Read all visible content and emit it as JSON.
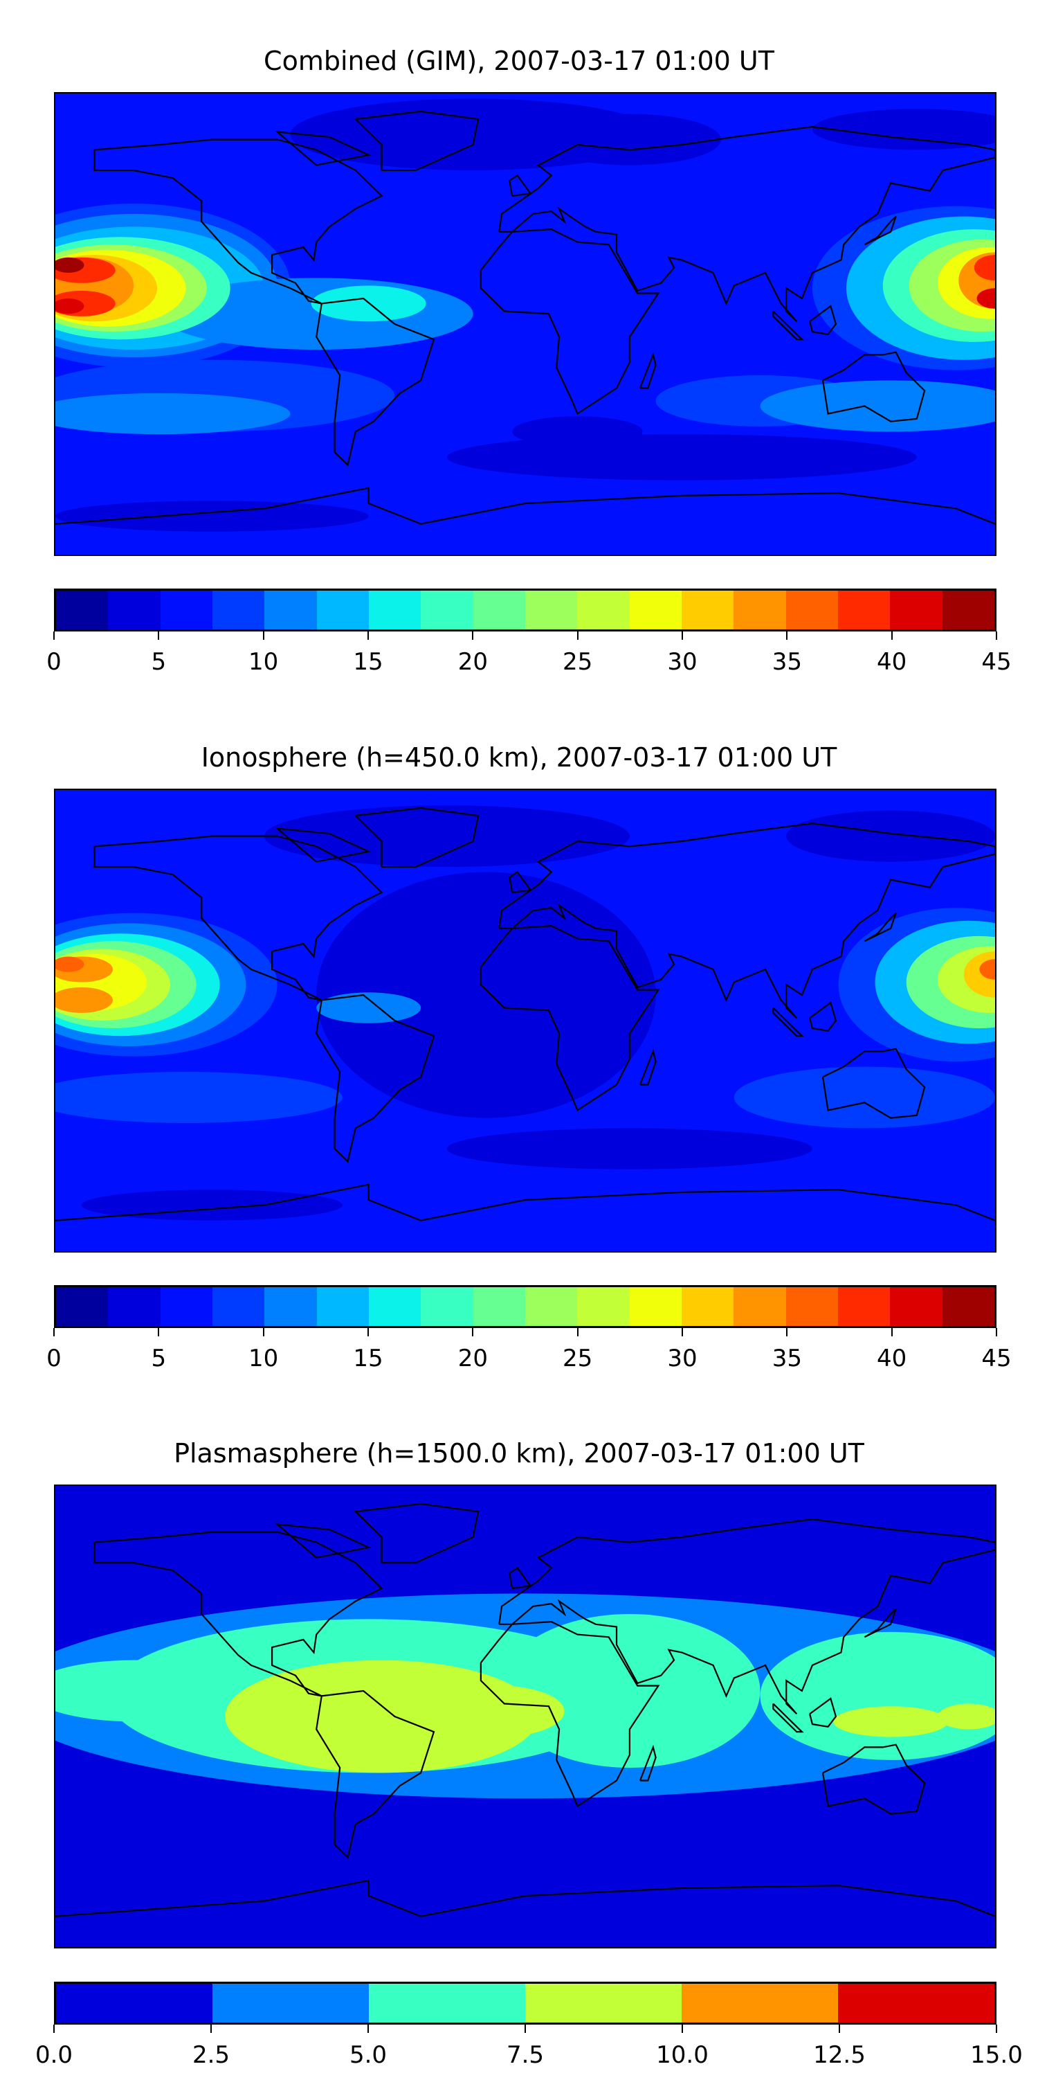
{
  "chart_data": [
    {
      "type": "heatmap",
      "title": "Combined (GIM), 2007-03-17 01:00 UT",
      "projection": "plate carree world map with coastlines",
      "colorbar": {
        "range": [
          0,
          45
        ],
        "step": 2.5,
        "ticks": [
          "0",
          "5",
          "10",
          "15",
          "20",
          "25",
          "30",
          "35",
          "40",
          "45"
        ],
        "colors": [
          "#00009f",
          "#0000dd",
          "#0010ff",
          "#003cff",
          "#0080ff",
          "#00b8ff",
          "#0af2ea",
          "#38ffc2",
          "#66ff92",
          "#9cff5c",
          "#c2ff36",
          "#f2ff0a",
          "#ffcc00",
          "#ff9400",
          "#ff6000",
          "#ff2a00",
          "#dd0000",
          "#9f0000"
        ]
      }
    },
    {
      "type": "heatmap",
      "title": "Ionosphere  (h=450.0 km), 2007-03-17 01:00 UT",
      "projection": "plate carree world map with coastlines",
      "colorbar": {
        "range": [
          0,
          45
        ],
        "step": 2.5,
        "ticks": [
          "0",
          "5",
          "10",
          "15",
          "20",
          "25",
          "30",
          "35",
          "40",
          "45"
        ],
        "colors": [
          "#00009f",
          "#0000dd",
          "#0010ff",
          "#003cff",
          "#0080ff",
          "#00b8ff",
          "#0af2ea",
          "#38ffc2",
          "#66ff92",
          "#9cff5c",
          "#c2ff36",
          "#f2ff0a",
          "#ffcc00",
          "#ff9400",
          "#ff6000",
          "#ff2a00",
          "#dd0000",
          "#9f0000"
        ]
      }
    },
    {
      "type": "heatmap",
      "title": "Plasmasphere (h=1500.0 km), 2007-03-17 01:00 UT",
      "projection": "plate carree world map with coastlines",
      "colorbar": {
        "range": [
          0,
          15
        ],
        "step": 2.5,
        "ticks": [
          "0.0",
          "2.5",
          "5.0",
          "7.5",
          "10.0",
          "12.5",
          "15.0"
        ],
        "colors": [
          "#0000dd",
          "#0080ff",
          "#38ffc2",
          "#c2ff36",
          "#ff9400",
          "#dd0000"
        ]
      }
    }
  ]
}
